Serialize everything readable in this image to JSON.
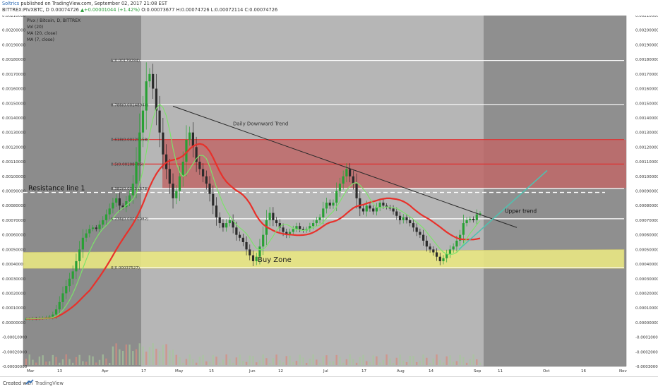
{
  "header": {
    "author": "Soltrics",
    "published_text": "published on TradingView.com, September 02, 2017 21:08 EST",
    "symbol": "BITTREX:PIVXBTC, D",
    "price_quote": "0.00074726",
    "change": "▲+0.00001044 (+1.42%)",
    "ohlc": "O:0.00073677 H:0.00074726 L:0.00072114 C:0.00074726"
  },
  "footer": {
    "created_with": "Created with",
    "brand": "TradingView"
  },
  "colors": {
    "left_shade": "#8c8c8c",
    "main_bg": "#b6b6b6",
    "right_bg": "#8f8f8f",
    "red_zone": "#c06868",
    "buy_zone": "#e9e783",
    "ma20": "#e8312b",
    "ma7": "#7ce36a",
    "trend": "#2a2a2a",
    "upper_trend": "#4fc1b0",
    "candle_up": "#29a035",
    "candle_down": "#2b2b2b"
  },
  "chart_data": {
    "type": "candlestick",
    "title": "Pivx / Bitcoin, D, BITTREX",
    "legend": [
      "Vol (20)",
      "MA (20, close)",
      "MA (7, close)"
    ],
    "y_ticks": [
      "0.00210000",
      "0.00200000",
      "0.00190000",
      "0.00180000",
      "0.00170000",
      "0.00160000",
      "0.00150000",
      "0.00140000",
      "0.00130000",
      "0.00120000",
      "0.00110000",
      "0.00100000",
      "0.00090000",
      "0.00080000",
      "0.00070000",
      "0.00060000",
      "0.00050000",
      "0.00040000",
      "0.00030000",
      "0.00020000",
      "0.00010000",
      "0.00000000",
      "-0.00010000",
      "-0.00020000",
      "-0.00030000"
    ],
    "ylim": [
      -0.0003,
      0.0021
    ],
    "x_ticks": [
      "Mar",
      "13",
      "Apr",
      "17",
      "May",
      "15",
      "Jun",
      "12",
      "Jul",
      "17",
      "Aug",
      "14",
      "Sep",
      "11",
      "Oct",
      "16",
      "Nov"
    ],
    "fib_levels": [
      {
        "label": "1(0.00179284)",
        "value": 0.00179284
      },
      {
        "label": "0.786(0.00148948)",
        "value": 0.00148948
      },
      {
        "label": "0.618(0.00125158)",
        "value": 0.00125158
      },
      {
        "label": "0.5(0.00108405)",
        "value": 0.00108405
      },
      {
        "label": "0.382(0.00091678)",
        "value": 0.00091678
      },
      {
        "label": "0.236(0.00070982)",
        "value": 0.00070982
      },
      {
        "label": "0(0.00037527)",
        "value": 0.00037527
      }
    ],
    "resistance_label": "Resistance line 1",
    "resistance_value": 0.00089,
    "buy_zone": {
      "label": "Buy Zone",
      "top": 0.00049,
      "bottom": 0.00037
    },
    "red_zone": {
      "top": 0.00125,
      "bottom": 0.00092
    },
    "trendline_label": "Daily Downward Trend",
    "upper_trend_label": "Upper trend",
    "closes": [
      2.5e-05,
      2.5e-05,
      2.8e-05,
      2.7e-05,
      3e-05,
      3.2e-05,
      3.5e-05,
      4e-05,
      5.5e-05,
      9e-05,
      0.00014,
      0.0002,
      0.00025,
      0.0003,
      0.00035,
      0.00042,
      0.0005,
      0.00058,
      0.00061,
      0.00064,
      0.00065,
      0.00064,
      0.00067,
      0.0007,
      0.00074,
      0.00078,
      0.00082,
      0.00085,
      0.0008,
      0.00079,
      0.00083,
      0.00087,
      0.00095,
      0.0011,
      0.0013,
      0.00145,
      0.00165,
      0.0017,
      0.0016,
      0.00145,
      0.0013,
      0.00115,
      0.00105,
      0.00095,
      0.00085,
      0.0009,
      0.001,
      0.0011,
      0.00125,
      0.0013,
      0.0012,
      0.0011,
      0.00105,
      0.001,
      0.00095,
      0.00088,
      0.0008,
      0.00072,
      0.00068,
      0.00065,
      0.00068,
      0.0007,
      0.00065,
      0.0006,
      0.00058,
      0.00055,
      0.0005,
      0.00046,
      0.00042,
      0.00045,
      0.00052,
      0.0006,
      0.0007,
      0.00075,
      0.0007,
      0.00068,
      0.00065,
      0.00062,
      0.0006,
      0.00062,
      0.00064,
      0.00066,
      0.00064,
      0.00063,
      0.00064,
      0.00066,
      0.00068,
      0.0007,
      0.00072,
      0.00078,
      0.00082,
      0.0008,
      0.00082,
      0.0009,
      0.00095,
      0.001,
      0.00105,
      0.001,
      0.00095,
      0.00085,
      0.00078,
      0.00076,
      0.0008,
      0.00078,
      0.00076,
      0.00079,
      0.00082,
      0.0008,
      0.00079,
      0.00078,
      0.00076,
      0.00073,
      0.0007,
      0.00072,
      0.0007,
      0.00068,
      0.00065,
      0.00062,
      0.0006,
      0.00056,
      0.00052,
      0.0005,
      0.00048,
      0.00045,
      0.00042,
      0.00044,
      0.00047,
      0.0005,
      0.00052,
      0.00056,
      0.0006,
      0.00068,
      0.0007,
      0.00071,
      0.0007,
      0.00074,
      0.000747
    ]
  }
}
